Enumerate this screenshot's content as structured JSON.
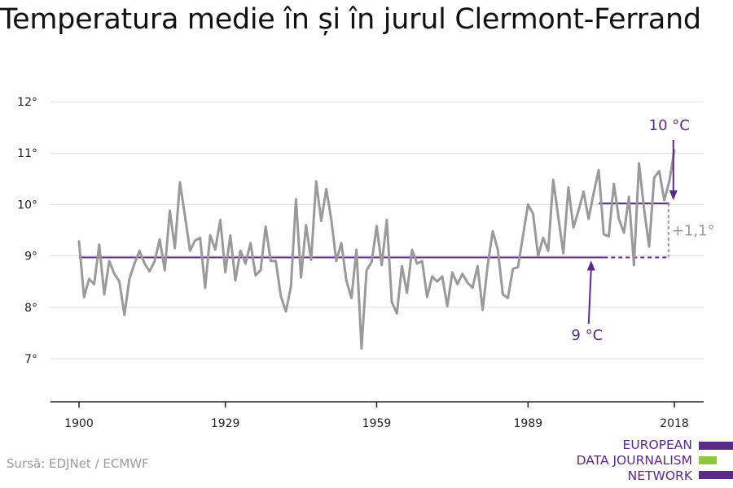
{
  "title": "Temperatura medie în și în jurul Clermont-Ferrand",
  "source": "Sursă: EDJNet / ECMWF",
  "logo": {
    "lines": [
      "EUROPEAN",
      "DATA JOURNALISM",
      "NETWORK"
    ]
  },
  "colors": {
    "series": "#9a9a9a",
    "average": "#5b2a86",
    "gridline": "#dddddd",
    "logo_purple": "#5b2a86",
    "logo_green": "#8fc63f"
  },
  "chart_data": {
    "type": "line",
    "title": "Temperatura medie în și în jurul Clermont-Ferrand",
    "xlim": [
      1900,
      2018
    ],
    "ylim": [
      6,
      12.3
    ],
    "x_ticks": [
      {
        "value": 1900,
        "label": "1900"
      },
      {
        "value": 1929,
        "label": "1929"
      },
      {
        "value": 1959,
        "label": "1959"
      },
      {
        "value": 1989,
        "label": "1989"
      },
      {
        "value": 2018,
        "label": "2018"
      }
    ],
    "y_ticks": [
      {
        "value": 7,
        "label": "7°"
      },
      {
        "value": 8,
        "label": "8°"
      },
      {
        "value": 9,
        "label": "9°"
      },
      {
        "value": 10,
        "label": "10°"
      },
      {
        "value": 11,
        "label": "11°"
      },
      {
        "value": 12,
        "label": "12°"
      }
    ],
    "grid": true,
    "series": [
      {
        "x": [
          1900,
          1901,
          1902,
          1903,
          1904,
          1905,
          1906,
          1907,
          1908,
          1909,
          1910,
          1911,
          1912,
          1913,
          1914,
          1915,
          1916,
          1917,
          1918,
          1919,
          1920,
          1921,
          1922,
          1923,
          1924,
          1925,
          1926,
          1927,
          1928,
          1929,
          1930,
          1931,
          1932,
          1933,
          1934,
          1935,
          1936,
          1937,
          1938,
          1939,
          1940,
          1941,
          1942,
          1943,
          1944,
          1945,
          1946,
          1947,
          1948,
          1949,
          1950,
          1951,
          1952,
          1953,
          1954,
          1955,
          1956,
          1957,
          1958,
          1959,
          1960,
          1961,
          1962,
          1963,
          1964,
          1965,
          1966,
          1967,
          1968,
          1969,
          1970,
          1971,
          1972,
          1973,
          1974,
          1975,
          1976,
          1977,
          1978,
          1979,
          1980,
          1981,
          1982,
          1983,
          1984,
          1985,
          1986,
          1987,
          1988,
          1989,
          1990,
          1991,
          1992,
          1993,
          1994,
          1995,
          1996,
          1997,
          1998,
          1999,
          2000,
          2001,
          2002,
          2003,
          2004,
          2005,
          2006,
          2007,
          2008,
          2009,
          2010,
          2011,
          2012,
          2013,
          2014,
          2015,
          2016,
          2017,
          2018
        ],
        "values": [
          9.28,
          8.2,
          8.55,
          8.45,
          9.22,
          8.25,
          8.9,
          8.65,
          8.5,
          7.85,
          8.55,
          8.85,
          9.1,
          8.85,
          8.7,
          8.9,
          9.32,
          8.72,
          9.88,
          9.15,
          10.43,
          9.78,
          9.1,
          9.3,
          9.35,
          8.38,
          9.4,
          9.12,
          9.7,
          8.68,
          9.4,
          8.52,
          9.1,
          8.85,
          9.25,
          8.62,
          8.72,
          9.57,
          8.9,
          8.9,
          8.22,
          7.92,
          8.4,
          10.1,
          8.58,
          9.6,
          8.92,
          10.45,
          9.68,
          10.3,
          9.72,
          8.9,
          9.25,
          8.52,
          8.18,
          9.12,
          7.2,
          8.72,
          8.88,
          9.58,
          8.82,
          9.7,
          8.1,
          7.88,
          8.8,
          8.28,
          9.12,
          8.85,
          8.9,
          8.2,
          8.6,
          8.5,
          8.6,
          8.02,
          8.68,
          8.45,
          8.65,
          8.48,
          8.38,
          8.8,
          7.95,
          8.82,
          9.48,
          9.12,
          8.25,
          8.18,
          8.75,
          8.78,
          9.4,
          10.0,
          9.82,
          9.0,
          9.35,
          9.1,
          10.48,
          9.75,
          9.05,
          10.33,
          9.55,
          9.88,
          10.25,
          9.72,
          10.22,
          10.67,
          9.42,
          9.38,
          10.4,
          9.72,
          9.45,
          10.15,
          8.82,
          10.8,
          9.92,
          9.18,
          10.52,
          10.65,
          10.08,
          10.45,
          11.05
        ]
      }
    ],
    "reference_lines": [
      {
        "from": 1900,
        "to": 2004,
        "value": 8.97,
        "style": "solid"
      },
      {
        "from": 2004,
        "to": 2017,
        "value": 8.97,
        "style": "dashed"
      },
      {
        "from": 2003,
        "to": 2017,
        "value": 10.02,
        "style": "solid"
      }
    ],
    "annotations": {
      "baseline_label": "9 °C",
      "recent_label": "10 °C",
      "difference_label": "+1,1°"
    }
  }
}
